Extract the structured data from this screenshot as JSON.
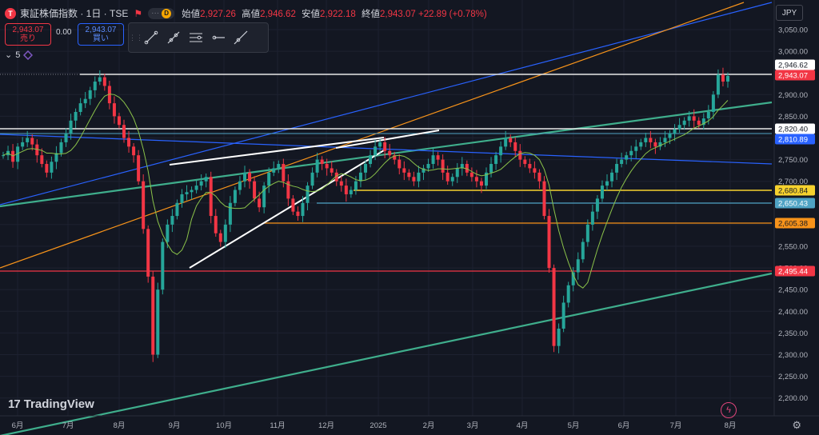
{
  "header": {
    "logo_letter": "T",
    "symbol": "東証株価指数 · 1日 · TSE",
    "flag_icon": "flag-icon",
    "pill_letter": "D",
    "pill_dots": "···",
    "ohlc": [
      {
        "label": "始値",
        "value": "2,927.26"
      },
      {
        "label": "高値",
        "value": "2,946.62"
      },
      {
        "label": "安値",
        "value": "2,922.18"
      },
      {
        "label": "終値",
        "value": "2,943.07"
      },
      {
        "label": "",
        "value": "+22.89 (+0.78%)"
      }
    ]
  },
  "trade": {
    "sell_price": "2,943.07",
    "sell_label": "売り",
    "spread": "0.00",
    "buy_price": "2,943.07",
    "buy_label": "買い"
  },
  "indicator": {
    "value": "5"
  },
  "toolbar": {
    "tools": [
      "trend-line-icon",
      "ray-icon",
      "parallel-channel-icon",
      "horizontal-ray-icon",
      "extended-line-icon"
    ]
  },
  "currency": "JPY",
  "watermark": "TradingView",
  "colors": {
    "background": "#131722",
    "up": "#26a69a",
    "down": "#f23645",
    "white": "#e8e8e8",
    "blue": "#2962ff",
    "orange": "#f7931a",
    "green_line": "#3fae8c",
    "yellow": "#f6d22e",
    "cyan": "#4fa3c4",
    "red_line": "#f23645",
    "sma": "#8bc34a"
  },
  "chart_data": {
    "type": "candlestick",
    "y_ticks": [
      "3,050.00",
      "3,000.00",
      "2,950.00",
      "2,900.00",
      "2,850.00",
      "2,800.00",
      "2,750.00",
      "2,700.00",
      "2,650.00",
      "2,600.00",
      "2,550.00",
      "2,500.00",
      "2,450.00",
      "2,400.00",
      "2,350.00",
      "2,300.00",
      "2,250.00",
      "2,200.00"
    ],
    "x_ticks": [
      "6月",
      "7月",
      "8月",
      "9月",
      "10月",
      "11月",
      "12月",
      "2025",
      "2月",
      "3月",
      "4月",
      "5月",
      "6月",
      "7月",
      "8月"
    ],
    "ylim": [
      2175,
      3075
    ],
    "price_labels": [
      {
        "value": "2,946.62",
        "kind": "white"
      },
      {
        "value": "2,943.07",
        "kind": "red"
      },
      {
        "value": "2,820.40",
        "kind": "white"
      },
      {
        "value": "2,810.89",
        "kind": "blue"
      },
      {
        "value": "2,680.84",
        "kind": "yellow"
      },
      {
        "value": "2,650.43",
        "kind": "cyan"
      },
      {
        "value": "2,605.38",
        "kind": "orange"
      },
      {
        "value": "2,495.44",
        "kind": "red"
      }
    ],
    "closes": [
      2760,
      2770,
      2745,
      2780,
      2790,
      2800,
      2785,
      2760,
      2740,
      2720,
      2745,
      2765,
      2790,
      2810,
      2840,
      2860,
      2880,
      2890,
      2910,
      2930,
      2940,
      2920,
      2880,
      2850,
      2830,
      2800,
      2780,
      2760,
      2700,
      2590,
      2480,
      2300,
      2450,
      2560,
      2600,
      2620,
      2650,
      2670,
      2675,
      2680,
      2690,
      2700,
      2710,
      2620,
      2580,
      2560,
      2600,
      2650,
      2680,
      2700,
      2720,
      2700,
      2660,
      2640,
      2690,
      2720,
      2730,
      2740,
      2700,
      2660,
      2630,
      2620,
      2650,
      2690,
      2720,
      2750,
      2740,
      2730,
      2720,
      2700,
      2690,
      2670,
      2680,
      2700,
      2720,
      2740,
      2760,
      2780,
      2790,
      2770,
      2760,
      2750,
      2730,
      2720,
      2710,
      2700,
      2720,
      2730,
      2740,
      2760,
      2750,
      2720,
      2700,
      2710,
      2730,
      2740,
      2720,
      2710,
      2700,
      2690,
      2720,
      2740,
      2760,
      2780,
      2800,
      2790,
      2770,
      2750,
      2740,
      2730,
      2720,
      2700,
      2620,
      2500,
      2320,
      2360,
      2420,
      2460,
      2490,
      2520,
      2560,
      2600,
      2630,
      2660,
      2690,
      2700,
      2720,
      2740,
      2750,
      2760,
      2770,
      2780,
      2790,
      2800,
      2790,
      2780,
      2790,
      2800,
      2810,
      2820,
      2830,
      2840,
      2850,
      2840,
      2830,
      2845,
      2860,
      2900,
      2946,
      2930,
      2943
    ]
  }
}
